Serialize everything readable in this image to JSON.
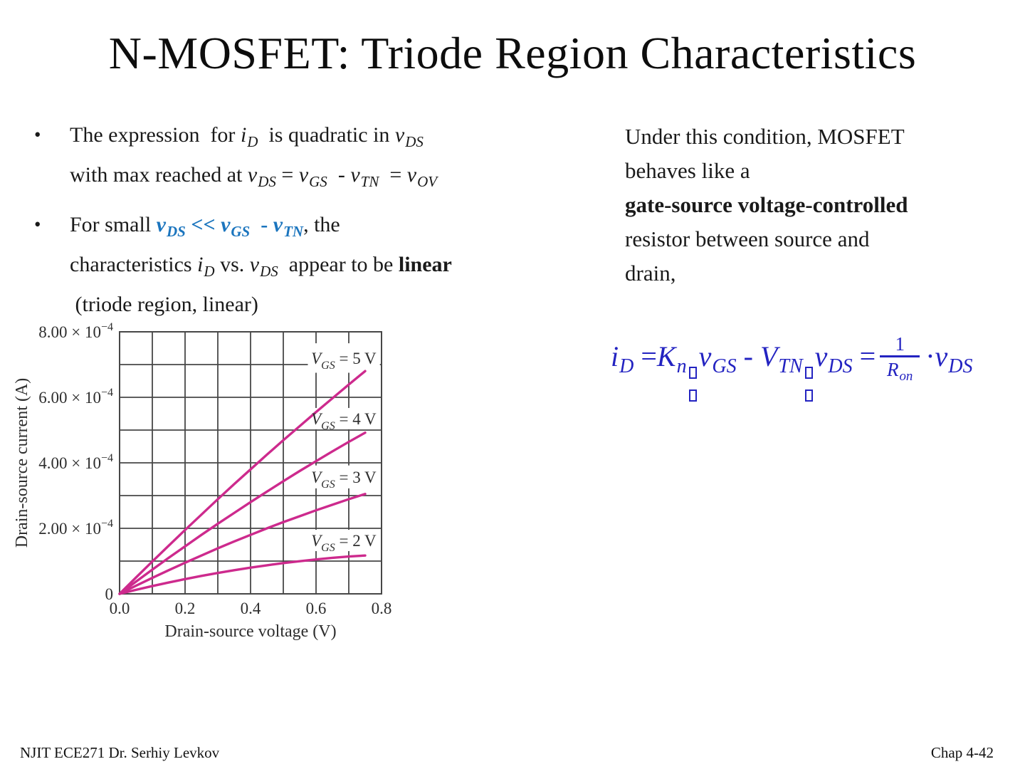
{
  "slide": {
    "title": "N-MOSFET: Triode Region Characteristics",
    "footer_left": "NJIT  ECE271 Dr. Serhiy Levkov",
    "footer_right": "Chap 4-42"
  },
  "colors": {
    "text": "#1a1a1a",
    "accent_blue": "#1b75be",
    "equation_blue": "#2323c1",
    "curve_pink": "#cd2a8d",
    "grid": "#474747",
    "chart_text": "#2e2e2e"
  },
  "bullets": [
    {
      "marker": "•",
      "lines": [
        [
          {
            "text": "The expression  for "
          },
          {
            "text": "i",
            "i": true
          },
          {
            "text": "D",
            "i": true,
            "sub": true
          },
          {
            "text": "  is quadratic in "
          },
          {
            "text": "v",
            "i": true
          },
          {
            "text": "DS",
            "i": true,
            "sub": true
          }
        ],
        [
          {
            "text": "with max reached at "
          },
          {
            "text": "v",
            "i": true
          },
          {
            "text": "DS",
            "i": true,
            "sub": true
          },
          {
            "text": " = "
          },
          {
            "text": "v",
            "i": true
          },
          {
            "text": "GS",
            "i": true,
            "sub": true
          },
          {
            "text": "  - "
          },
          {
            "text": "v",
            "i": true
          },
          {
            "text": "TN",
            "i": true,
            "sub": true
          },
          {
            "text": "  = "
          },
          {
            "text": "v",
            "i": true
          },
          {
            "text": "OV",
            "i": true,
            "sub": true
          }
        ]
      ]
    },
    {
      "marker": "•",
      "lines": [
        [
          {
            "text": "For small "
          },
          {
            "text": "v",
            "i": true,
            "b": true,
            "c": "accent_blue"
          },
          {
            "text": "DS",
            "i": true,
            "b": true,
            "sub": true,
            "c": "accent_blue"
          },
          {
            "text": " << ",
            "b": true,
            "c": "accent_blue"
          },
          {
            "text": "v",
            "i": true,
            "b": true,
            "c": "accent_blue"
          },
          {
            "text": "GS",
            "i": true,
            "b": true,
            "sub": true,
            "c": "accent_blue"
          },
          {
            "text": "  - ",
            "b": true,
            "c": "accent_blue"
          },
          {
            "text": "v",
            "i": true,
            "b": true,
            "c": "accent_blue"
          },
          {
            "text": "TN",
            "i": true,
            "b": true,
            "sub": true,
            "c": "accent_blue"
          },
          {
            "text": ", the"
          }
        ],
        [
          {
            "text": "characteristics "
          },
          {
            "text": "i",
            "i": true
          },
          {
            "text": "D",
            "i": true,
            "sub": true
          },
          {
            "text": " vs. "
          },
          {
            "text": "v",
            "i": true
          },
          {
            "text": "DS",
            "i": true,
            "sub": true
          },
          {
            "text": "  appear to be "
          },
          {
            "text": "linear",
            "b": true
          }
        ],
        [
          {
            "text": " (triode region, linear)"
          }
        ]
      ]
    }
  ],
  "right_text": {
    "lines": [
      [
        {
          "text": "Under this condition, MOSFET"
        }
      ],
      [
        {
          "text": "behaves like a"
        }
      ],
      [
        {
          "text": "gate-source voltage-controlled",
          "b": true
        }
      ],
      [
        {
          "text": "resistor between source and"
        }
      ],
      [
        {
          "text": "drain,"
        }
      ]
    ]
  },
  "equation": {
    "tokens": [
      {
        "t": "var",
        "m": "i",
        "s": "D"
      },
      {
        "t": "op",
        "x": " ="
      },
      {
        "t": "var",
        "m": "K",
        "s": "n"
      },
      {
        "t": "tofu"
      },
      {
        "t": "var",
        "m": "v",
        "s": "GS"
      },
      {
        "t": "op",
        "x": " - "
      },
      {
        "t": "var",
        "m": "V",
        "s": "TN"
      },
      {
        "t": "tofu"
      },
      {
        "t": "var",
        "m": "v",
        "s": "DS"
      },
      {
        "t": "op",
        "x": " ="
      },
      {
        "t": "frac",
        "num": "1",
        "den": {
          "m": "R",
          "s": "on"
        }
      },
      {
        "t": "op",
        "x": "·"
      },
      {
        "t": "var",
        "m": "v",
        "s": "DS"
      }
    ]
  },
  "chart_data": {
    "type": "line",
    "title": "",
    "xlabel": "Drain-source voltage (V)",
    "ylabel": "Drain-source current (A)",
    "xlim": [
      0,
      0.8
    ],
    "ylim": [
      0,
      0.0008
    ],
    "grid": {
      "x_step": 0.1,
      "y_step": 0.0001,
      "on": true
    },
    "x_ticks": [
      0.0,
      0.2,
      0.4,
      0.6,
      0.8
    ],
    "x_tick_labels": [
      "0.0",
      "0.2",
      "0.4",
      "0.6",
      "0.8"
    ],
    "y_ticks": [
      {
        "value": 0.0008,
        "mantissa": "8.00 × 10",
        "exponent": "−4"
      },
      {
        "value": 0.0006,
        "mantissa": "6.00 × 10",
        "exponent": "−4"
      },
      {
        "value": 0.0004,
        "mantissa": "4.00 × 10",
        "exponent": "−4"
      },
      {
        "value": 0.0002,
        "mantissa": "2.00 × 10",
        "exponent": "−4"
      },
      {
        "value": 0,
        "mantissa": "0",
        "exponent": ""
      }
    ],
    "x": [
      0,
      0.05,
      0.1,
      0.15,
      0.2,
      0.25,
      0.3,
      0.35,
      0.4,
      0.45,
      0.5,
      0.55,
      0.6,
      0.65,
      0.7,
      0.75
    ],
    "series": [
      {
        "name": "VGS = 5 V",
        "label": {
          "pre": "V",
          "sub": "GS",
          "post": " = 5 V"
        },
        "label_pos": {
          "cx": 0.685,
          "cy": 0.00072,
          "w": 0.22,
          "h": 9e-05
        },
        "values": [
          0,
          4.97e-05,
          9.88e-05,
          0.000147,
          0.000195,
          0.000242,
          0.000289,
          0.000335,
          0.00038,
          0.000425,
          0.000469,
          0.000512,
          0.000555,
          0.000597,
          0.000639,
          0.00068
        ]
      },
      {
        "name": "VGS = 4 V",
        "label": {
          "pre": "V",
          "sub": "GS",
          "post": " = 4 V"
        },
        "label_pos": {
          "cx": 0.685,
          "cy": 0.000535,
          "w": 0.22,
          "h": 6.5e-05
        },
        "values": [
          0,
          3.72e-05,
          7.38e-05,
          0.00011,
          0.000145,
          0.00018,
          0.000214,
          0.000247,
          0.00028,
          0.000312,
          0.000344,
          0.000375,
          0.000405,
          0.000435,
          0.000464,
          0.000492
        ]
      },
      {
        "name": "VGS = 3 V",
        "label": {
          "pre": "V",
          "sub": "GS",
          "post": " = 3 V"
        },
        "label_pos": {
          "cx": 0.685,
          "cy": 0.000357,
          "w": 0.22,
          "h": 7e-05
        },
        "values": [
          0,
          2.47e-05,
          4.88e-05,
          7.22e-05,
          9.5e-05,
          0.000117,
          0.000139,
          0.00016,
          0.00018,
          0.0002,
          0.000219,
          0.000237,
          0.000255,
          0.000272,
          0.000289,
          0.000305
        ]
      },
      {
        "name": "VGS = 2 V",
        "label": {
          "pre": "V",
          "sub": "GS",
          "post": " = 2 V"
        },
        "label_pos": {
          "cx": 0.685,
          "cy": 0.000163,
          "w": 0.22,
          "h": 6.5e-05
        },
        "values": [
          0,
          1.22e-05,
          2.38e-05,
          3.47e-05,
          4.5e-05,
          5.47e-05,
          6.38e-05,
          7.22e-05,
          8e-05,
          8.72e-05,
          9.38e-05,
          9.97e-05,
          0.000105,
          0.00011,
          0.000114,
          0.000117
        ]
      }
    ]
  }
}
